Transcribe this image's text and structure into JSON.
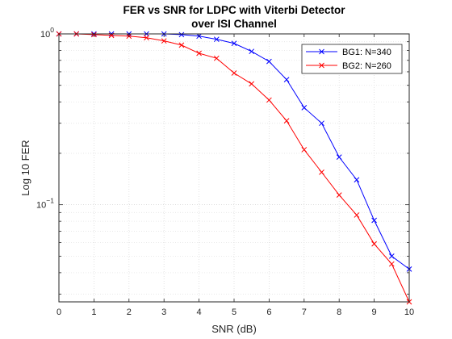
{
  "chart_data": {
    "type": "line",
    "title": [
      "FER vs SNR for LDPC with Viterbi Detector",
      "over ISI Channel"
    ],
    "xlabel": "SNR (dB)",
    "ylabel": "Log 10 FER",
    "xlim": [
      0,
      10
    ],
    "ylim": [
      0.027,
      1
    ],
    "yscale": "log",
    "grid": "on",
    "minor_grid": "on",
    "legend_position": "top-right",
    "x_ticks": [
      "0",
      "1",
      "2",
      "3",
      "4",
      "5",
      "6",
      "7",
      "8",
      "9",
      "10"
    ],
    "y_ticks": [
      {
        "base": "10",
        "exp": "0"
      },
      {
        "base": "10",
        "exp": "−1"
      }
    ],
    "series": [
      {
        "name": "BG1: N=340",
        "color": "#0000ff",
        "marker": "x",
        "x": [
          0,
          0.5,
          1,
          1.5,
          2,
          2.5,
          3,
          3.5,
          4,
          4.5,
          5,
          5.5,
          6,
          6.5,
          7,
          7.5,
          8,
          8.5,
          9,
          9.5,
          10
        ],
        "y": [
          1.0,
          1.0,
          1.0,
          1.0,
          1.0,
          1.0,
          1.0,
          0.99,
          0.97,
          0.93,
          0.88,
          0.79,
          0.69,
          0.54,
          0.37,
          0.3,
          0.19,
          0.14,
          0.081,
          0.05,
          0.042
        ]
      },
      {
        "name": "BG2: N=260",
        "color": "#ff0000",
        "marker": "x",
        "x": [
          0,
          0.5,
          1,
          1.5,
          2,
          2.5,
          3,
          3.5,
          4,
          4.5,
          5,
          5.5,
          6,
          6.5,
          7,
          7.5,
          8,
          8.5,
          9,
          9.5,
          10
        ],
        "y": [
          1.0,
          1.0,
          0.99,
          0.98,
          0.97,
          0.95,
          0.91,
          0.86,
          0.77,
          0.72,
          0.59,
          0.51,
          0.41,
          0.31,
          0.21,
          0.155,
          0.114,
          0.087,
          0.059,
          0.045,
          0.027
        ]
      }
    ]
  }
}
